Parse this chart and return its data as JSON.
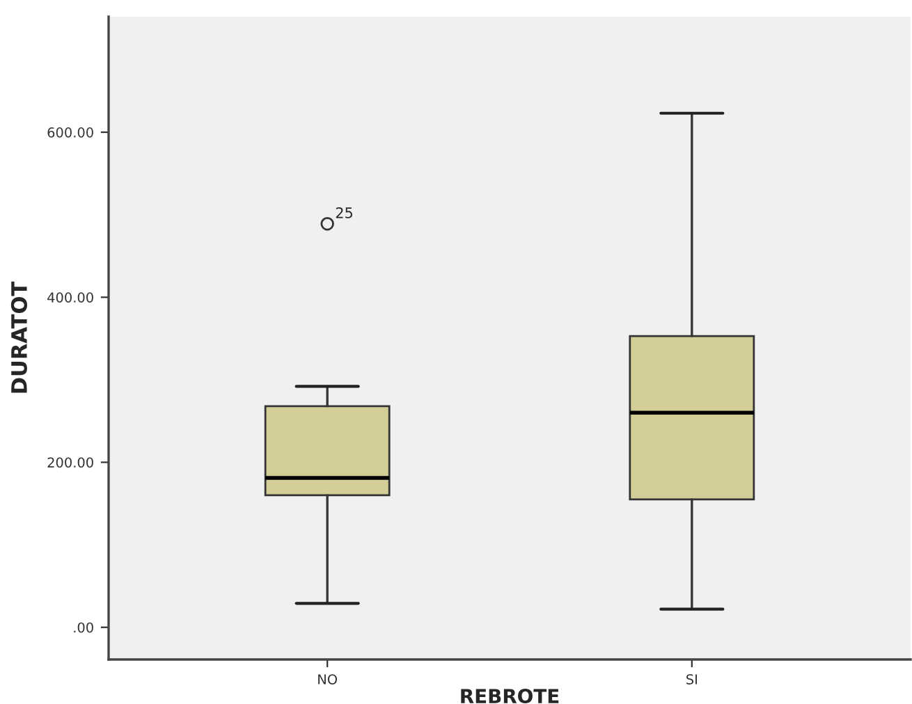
{
  "chart_data": {
    "type": "box",
    "xlabel": "REBROTE",
    "ylabel": "DURATOT",
    "categories": [
      "NO",
      "SI"
    ],
    "series": [
      {
        "color": "#d3ce97",
        "boxes": [
          {
            "low": 29,
            "q1": 160,
            "median": 181,
            "q3": 268,
            "high": 292,
            "outliers": [
              489
            ]
          },
          {
            "low": 22,
            "q1": 155,
            "median": 260,
            "q3": 353,
            "high": 623
          }
        ]
      }
    ],
    "ylim": [
      -39,
      740
    ],
    "yticks": [
      {
        "value": 0,
        "label": ".00"
      },
      {
        "value": 200,
        "label": "200.00"
      },
      {
        "value": 400,
        "label": "400.00"
      },
      {
        "value": 600,
        "label": "600.00"
      }
    ],
    "annotations": [
      "25"
    ],
    "grid": false
  }
}
